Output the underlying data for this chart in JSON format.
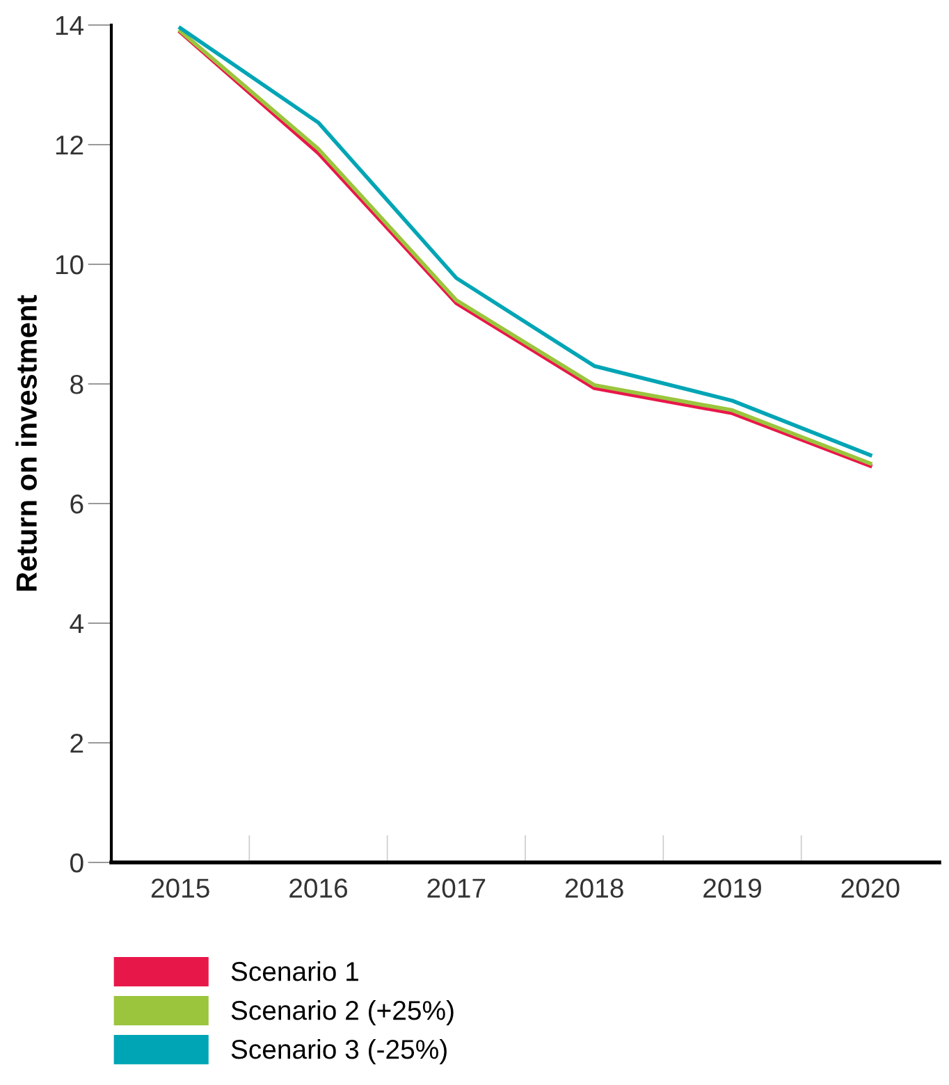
{
  "chart_data": {
    "type": "line",
    "ylabel": "Return on investment",
    "categories": [
      "2015",
      "2016",
      "2017",
      "2018",
      "2019",
      "2020"
    ],
    "series": [
      {
        "name": "Scenario 1",
        "color": "#e8174a",
        "values": [
          13.88,
          11.86,
          9.35,
          7.93,
          7.51,
          6.63
        ]
      },
      {
        "name": "Scenario 2 (+25%)",
        "color": "#9bc53d",
        "values": [
          13.9,
          11.93,
          9.4,
          7.98,
          7.56,
          6.67
        ]
      },
      {
        "name": "Scenario 3 (-25%)",
        "color": "#00a5b5",
        "values": [
          13.95,
          12.37,
          9.77,
          8.3,
          7.72,
          6.81
        ]
      }
    ],
    "ylim": [
      0,
      14
    ],
    "yticks": [
      0,
      2,
      4,
      6,
      8,
      10,
      12,
      14
    ],
    "grid": false,
    "legend": "bottom",
    "marker": "none",
    "line_style": "solid"
  }
}
